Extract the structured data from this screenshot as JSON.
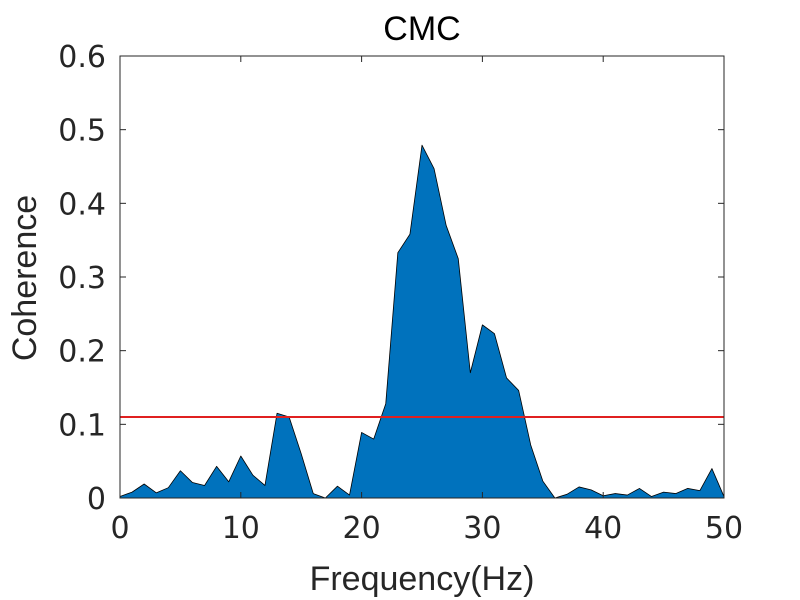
{
  "chart_data": {
    "type": "area",
    "title": "CMC",
    "xlabel": "Frequency(Hz)",
    "ylabel": "Coherence",
    "xlim": [
      0,
      50
    ],
    "ylim": [
      0,
      0.6
    ],
    "xticks": [
      0,
      10,
      20,
      30,
      40,
      50
    ],
    "yticks": [
      0,
      0.1,
      0.2,
      0.3,
      0.4,
      0.5,
      0.6
    ],
    "xtick_labels": [
      "0",
      "10",
      "20",
      "30",
      "40",
      "50"
    ],
    "ytick_labels": [
      "0",
      "0.1",
      "0.2",
      "0.3",
      "0.4",
      "0.5",
      "0.6"
    ],
    "grid": false,
    "box": true,
    "colors": {
      "fill": "#0072BD",
      "edge": "#000000",
      "threshold": "#E02020",
      "axis": "#262626"
    },
    "series": [
      {
        "x": [
          0,
          1,
          2,
          3,
          4,
          5,
          6,
          7,
          8,
          9,
          10,
          11,
          12,
          13,
          14,
          15,
          16,
          17,
          18,
          19,
          20,
          21,
          22,
          23,
          24,
          25,
          26,
          27,
          28,
          29,
          30,
          31,
          32,
          33,
          34,
          35,
          36,
          37,
          38,
          39,
          40,
          41,
          42,
          43,
          44,
          45,
          46,
          47,
          48,
          49,
          50
        ],
        "values": [
          0.002,
          0.008,
          0.019,
          0.007,
          0.014,
          0.037,
          0.021,
          0.017,
          0.043,
          0.022,
          0.057,
          0.031,
          0.017,
          0.115,
          0.11,
          0.06,
          0.006,
          0.0,
          0.016,
          0.004,
          0.089,
          0.08,
          0.128,
          0.333,
          0.358,
          0.479,
          0.447,
          0.37,
          0.325,
          0.17,
          0.235,
          0.223,
          0.163,
          0.146,
          0.072,
          0.023,
          0.0,
          0.005,
          0.015,
          0.011,
          0.003,
          0.006,
          0.004,
          0.013,
          0.002,
          0.008,
          0.006,
          0.013,
          0.01,
          0.04,
          0.002
        ]
      }
    ],
    "threshold": {
      "y": 0.11
    }
  }
}
